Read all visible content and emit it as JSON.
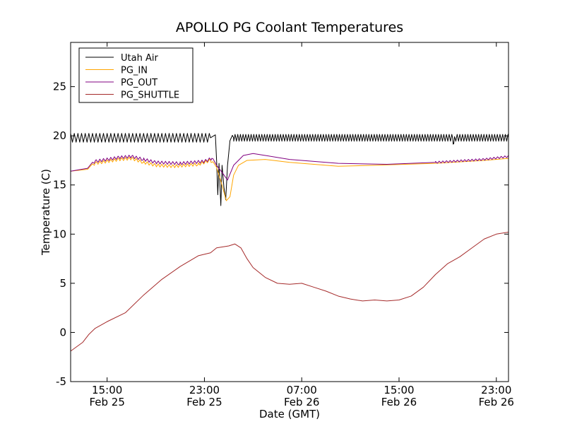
{
  "chart_data": {
    "type": "line",
    "title": "APOLLO PG Coolant Temperatures",
    "xlabel": "Date (GMT)",
    "ylabel": "Temperature (C)",
    "x_unit": "hours since Feb 25 12:00 GMT",
    "xlim": [
      0,
      36
    ],
    "ylim": [
      -5,
      29.5
    ],
    "grid": false,
    "legend_position": "top-left",
    "y_ticks": [
      {
        "value": -5,
        "label": "-5"
      },
      {
        "value": 0,
        "label": "0"
      },
      {
        "value": 5,
        "label": "5"
      },
      {
        "value": 10,
        "label": "10"
      },
      {
        "value": 15,
        "label": "15"
      },
      {
        "value": 20,
        "label": "20"
      },
      {
        "value": 25,
        "label": "25"
      }
    ],
    "x_ticks": [
      {
        "value": 3,
        "time": "15:00",
        "date": "Feb 25"
      },
      {
        "value": 11,
        "time": "23:00",
        "date": "Feb 25"
      },
      {
        "value": 19,
        "time": "07:00",
        "date": "Feb 26"
      },
      {
        "value": 27,
        "time": "15:00",
        "date": "Feb 26"
      },
      {
        "value": 35,
        "time": "23:00",
        "date": "Feb 26"
      }
    ],
    "series": [
      {
        "name": "Utah Air",
        "color": "#000000",
        "base": [
          [
            0,
            19.8
          ],
          [
            11.5,
            19.8
          ],
          [
            11.9,
            20.1
          ],
          [
            12.0,
            17.5
          ],
          [
            12.1,
            14.0
          ],
          [
            12.2,
            17.2
          ],
          [
            12.35,
            12.9
          ],
          [
            12.45,
            17.0
          ],
          [
            12.6,
            14.8
          ],
          [
            12.75,
            13.5
          ],
          [
            12.9,
            17.0
          ],
          [
            13.1,
            19.5
          ],
          [
            13.4,
            19.8
          ],
          [
            31.4,
            19.8
          ],
          [
            31.5,
            19.2
          ],
          [
            31.6,
            19.8
          ],
          [
            36,
            19.8
          ]
        ],
        "oscillation": [
          {
            "from": 0,
            "to": 11.5,
            "amplitude": 0.45,
            "period": 0.3
          },
          {
            "from": 13.3,
            "to": 36,
            "amplitude": 0.35,
            "period": 0.22
          }
        ]
      },
      {
        "name": "PG_IN",
        "color": "#ffa500",
        "base": [
          [
            0,
            16.4
          ],
          [
            1.4,
            16.6
          ],
          [
            2,
            17.2
          ],
          [
            4,
            17.6
          ],
          [
            5,
            17.7
          ],
          [
            6,
            17.3
          ],
          [
            7,
            17.0
          ],
          [
            8.5,
            16.9
          ],
          [
            10.5,
            17.1
          ],
          [
            11.5,
            17.5
          ],
          [
            12,
            16.8
          ],
          [
            12.4,
            15.2
          ],
          [
            12.8,
            13.4
          ],
          [
            13.1,
            13.8
          ],
          [
            13.4,
            16.0
          ],
          [
            13.8,
            17.0
          ],
          [
            14.5,
            17.5
          ],
          [
            16,
            17.6
          ],
          [
            18,
            17.3
          ],
          [
            22,
            16.9
          ],
          [
            25,
            17.0
          ],
          [
            30,
            17.2
          ],
          [
            34,
            17.5
          ],
          [
            36,
            17.7
          ]
        ],
        "oscillation": [
          {
            "from": 1.8,
            "to": 11.8,
            "amplitude": 0.15,
            "period": 0.3
          }
        ]
      },
      {
        "name": "PG_OUT",
        "color": "#800080",
        "base": [
          [
            0,
            16.4
          ],
          [
            1.4,
            16.7
          ],
          [
            2,
            17.4
          ],
          [
            4,
            17.8
          ],
          [
            5,
            17.9
          ],
          [
            6,
            17.6
          ],
          [
            7,
            17.3
          ],
          [
            9,
            17.2
          ],
          [
            11,
            17.4
          ],
          [
            11.6,
            17.7
          ],
          [
            12,
            17.0
          ],
          [
            12.5,
            16.2
          ],
          [
            12.9,
            15.5
          ],
          [
            13.4,
            17.0
          ],
          [
            14.2,
            18.0
          ],
          [
            15,
            18.2
          ],
          [
            16,
            18.0
          ],
          [
            18,
            17.6
          ],
          [
            22,
            17.2
          ],
          [
            26,
            17.1
          ],
          [
            30,
            17.3
          ],
          [
            34,
            17.6
          ],
          [
            36,
            17.9
          ]
        ],
        "oscillation": [
          {
            "from": 1.8,
            "to": 11.8,
            "amplitude": 0.15,
            "period": 0.3
          },
          {
            "from": 30,
            "to": 36,
            "amplitude": 0.1,
            "period": 0.3
          }
        ]
      },
      {
        "name": "PG_SHUTTLE",
        "color": "#a52a2a",
        "base": [
          [
            0,
            -1.9
          ],
          [
            1,
            -1.0
          ],
          [
            1.5,
            -0.2
          ],
          [
            2,
            0.4
          ],
          [
            3,
            1.1
          ],
          [
            4.5,
            2.0
          ],
          [
            6,
            3.8
          ],
          [
            7.5,
            5.4
          ],
          [
            9,
            6.7
          ],
          [
            10.5,
            7.8
          ],
          [
            11.5,
            8.1
          ],
          [
            12,
            8.6
          ],
          [
            13,
            8.8
          ],
          [
            13.5,
            9.0
          ],
          [
            14,
            8.6
          ],
          [
            14.5,
            7.5
          ],
          [
            15,
            6.6
          ],
          [
            16,
            5.6
          ],
          [
            17,
            5.0
          ],
          [
            18,
            4.9
          ],
          [
            19,
            5.0
          ],
          [
            20,
            4.6
          ],
          [
            21,
            4.2
          ],
          [
            22,
            3.7
          ],
          [
            23,
            3.4
          ],
          [
            24,
            3.2
          ],
          [
            25,
            3.3
          ],
          [
            26,
            3.2
          ],
          [
            27,
            3.3
          ],
          [
            28,
            3.7
          ],
          [
            29,
            4.6
          ],
          [
            30,
            5.9
          ],
          [
            31,
            7.0
          ],
          [
            32,
            7.7
          ],
          [
            33,
            8.6
          ],
          [
            34,
            9.5
          ],
          [
            35,
            10.0
          ],
          [
            36,
            10.2
          ]
        ],
        "oscillation": []
      }
    ]
  }
}
